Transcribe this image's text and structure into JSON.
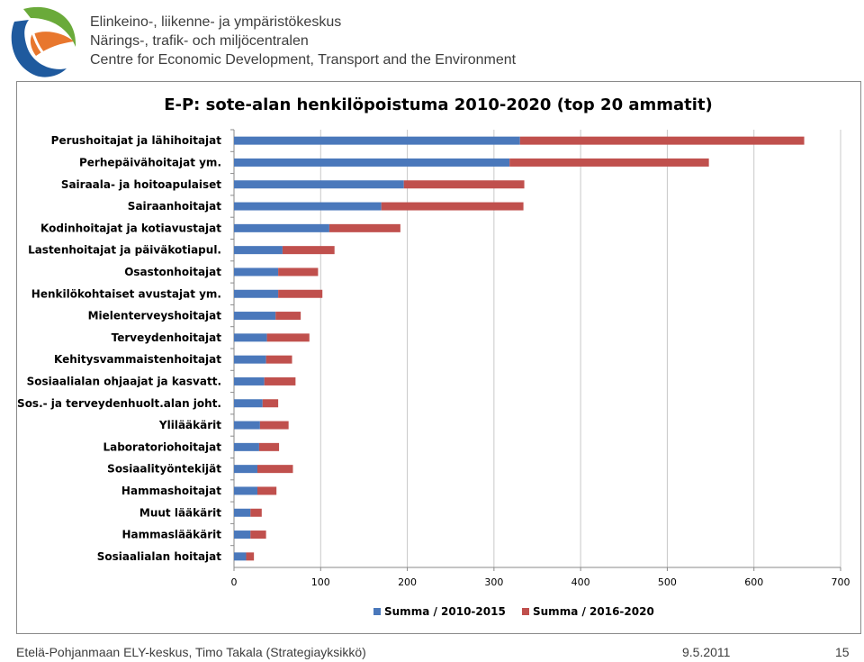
{
  "header": {
    "org_line1": "Elinkeino-, liikenne- ja ympäristökeskus",
    "org_line2": "Närings-, trafik- och miljöcentralen",
    "org_line3": "Centre for Economic Development, Transport and the Environment",
    "logo_icon": "ely-centre-logo-icon"
  },
  "colors": {
    "series1": "#4a78bb",
    "series2": "#c0504d",
    "grid": "#c8c8c8",
    "text": "#000000",
    "logo_blue": "#1f5a9e",
    "logo_orange": "#e8772e",
    "logo_green": "#6aaa3a"
  },
  "chart_data": {
    "type": "bar",
    "orientation": "horizontal",
    "stacked": true,
    "title": "E-P: sote-alan henkilöpoistuma 2010-2020 (top 20 ammatit)",
    "categories": [
      "Perushoitajat ja lähihoitajat",
      "Perhepäivähoitajat ym.",
      "Sairaala- ja hoitoapulaiset",
      "Sairaanhoitajat",
      "Kodinhoitajat ja kotiavustajat",
      "Lastenhoitajat ja päiväkotiapul.",
      "Osastonhoitajat",
      "Henkilökohtaiset avustajat ym.",
      "Mielenterveyshoitajat",
      "Terveydenhoitajat",
      "Kehitysvammaistenhoitajat",
      "Sosiaalialan ohjaajat ja kasvatt.",
      "Sos.- ja terveydenhuolt.alan joht.",
      "Ylilääkärit",
      "Laboratoriohoitajat",
      "Sosiaalityöntekijät",
      "Hammashoitajat",
      "Muut lääkärit",
      "Hammaslääkärit",
      "Sosiaalialan hoitajat"
    ],
    "series": [
      {
        "name": "Summa / 2010-2015",
        "values": [
          330,
          318,
          196,
          170,
          110,
          56,
          51,
          51,
          48,
          38,
          37,
          35,
          33,
          30,
          29,
          27,
          27,
          19,
          19,
          14
        ]
      },
      {
        "name": "Summa / 2016-2020",
        "values": [
          328,
          230,
          139,
          164,
          82,
          60,
          46,
          51,
          29,
          49,
          30,
          36,
          18,
          33,
          23,
          41,
          22,
          13,
          18,
          9
        ]
      }
    ],
    "xlim": [
      0,
      700
    ],
    "xticks": [
      "0",
      "100",
      "200",
      "300",
      "400",
      "500",
      "600",
      "700"
    ],
    "grid": "vertical",
    "legend_position": "bottom"
  },
  "footer": {
    "source": "Etelä-Pohjanmaan ELY-keskus, Timo Takala (Strategiayksikkö)",
    "date": "9.5.2011",
    "page": "15"
  }
}
